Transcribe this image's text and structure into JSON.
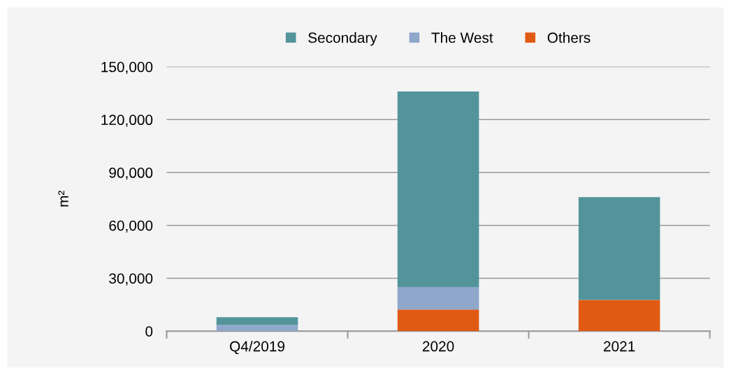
{
  "chart_data": {
    "type": "bar",
    "stacked": true,
    "ylabel": "m²",
    "categories": [
      "Q4/2019",
      "2020",
      "2021"
    ],
    "series": [
      {
        "name": "Others",
        "color": "#e05a14",
        "values": [
          0,
          12300,
          17700
        ]
      },
      {
        "name": "The West",
        "color": "#8ea7cb",
        "values": [
          3500,
          12700,
          0
        ]
      },
      {
        "name": "Secondary",
        "color": "#53949b",
        "values": [
          4400,
          111000,
          58300
        ]
      }
    ],
    "ylim": [
      0,
      150000
    ],
    "yticks": [
      {
        "value": 0,
        "label": "0"
      },
      {
        "value": 30000,
        "label": "30,000"
      },
      {
        "value": 60000,
        "label": "60,000"
      },
      {
        "value": 90000,
        "label": "90,000"
      },
      {
        "value": 120000,
        "label": "120,000"
      },
      {
        "value": 150000,
        "label": "150,000"
      }
    ],
    "grid": "y",
    "legend": "top"
  }
}
